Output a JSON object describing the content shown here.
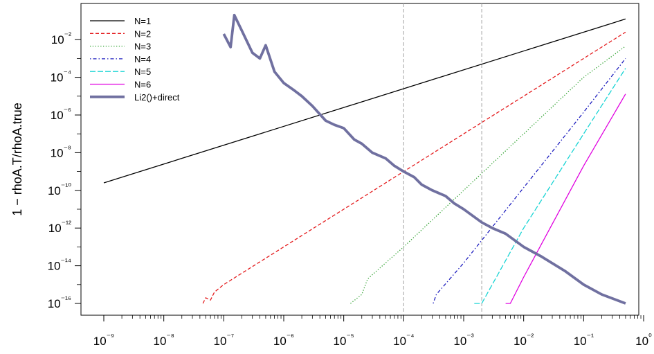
{
  "chart_data": {
    "type": "line",
    "title": "",
    "xlabel": "",
    "ylabel": "1 − rhoA.T/rhoA.true",
    "x_scale": "log10",
    "y_scale": "log10",
    "xlim": [
      1e-09,
      1
    ],
    "ylim": [
      1e-16,
      0.1
    ],
    "x_ticks": [
      "10⁻⁹",
      "10⁻⁸",
      "10⁻⁷",
      "10⁻⁶",
      "10⁻⁵",
      "10⁻⁴",
      "10⁻³",
      "10⁻²",
      "10⁻¹",
      "10⁰"
    ],
    "y_ticks": [
      "10⁻¹⁶",
      "10⁻¹⁴",
      "10⁻¹²",
      "10⁻¹⁰",
      "10⁻⁸",
      "10⁻⁶",
      "10⁻⁴",
      "10⁻²"
    ],
    "vlines": [
      0.0001,
      0.002
    ],
    "legend_position": "top-left",
    "grid": false,
    "series": [
      {
        "name": "N=1",
        "color": "#000000",
        "dash": "solid",
        "width": 1.3,
        "points": [
          [
            1e-09,
            2.5e-10
          ],
          [
            0.5,
            0.125
          ]
        ]
      },
      {
        "name": "N=2",
        "color": "#e41a1c",
        "dash": "dashed",
        "width": 1.3,
        "points": [
          [
            4.5e-08,
            1e-16
          ],
          [
            5e-08,
            2e-16
          ],
          [
            6e-08,
            1.5e-16
          ],
          [
            7e-08,
            4e-16
          ],
          [
            1e-07,
            1e-15
          ],
          [
            1e-06,
            1e-13
          ],
          [
            1e-05,
            1e-11
          ],
          [
            0.0001,
            1e-09
          ],
          [
            0.001,
            1e-07
          ],
          [
            0.01,
            1e-05
          ],
          [
            0.1,
            0.001
          ],
          [
            0.5,
            0.025
          ]
        ]
      },
      {
        "name": "N=3",
        "color": "#2ca02c",
        "dash": "dotted",
        "width": 1.3,
        "points": [
          [
            1.3e-05,
            1e-16
          ],
          [
            2e-05,
            3e-16
          ],
          [
            2.5e-05,
            2e-15
          ],
          [
            0.0001,
            1e-13
          ],
          [
            0.001,
            1e-10
          ],
          [
            0.01,
            1e-07
          ],
          [
            0.1,
            0.0001
          ],
          [
            0.5,
            0.0045
          ]
        ]
      },
      {
        "name": "N=4",
        "color": "#1f1fbf",
        "dash": "dotdash",
        "width": 1.3,
        "points": [
          [
            0.00031,
            1e-16
          ],
          [
            0.00035,
            3e-16
          ],
          [
            0.001,
            1.4e-14
          ],
          [
            0.01,
            1.4e-10
          ],
          [
            0.1,
            1.4e-06
          ],
          [
            0.5,
            0.001
          ]
        ]
      },
      {
        "name": "N=5",
        "color": "#17d4d4",
        "dash": "longdash",
        "width": 1.3,
        "points": [
          [
            0.0015,
            1e-16
          ],
          [
            0.002,
            1e-16
          ],
          [
            0.01,
            1e-12
          ],
          [
            0.1,
            1e-07
          ],
          [
            0.5,
            0.0003
          ]
        ]
      },
      {
        "name": "N=6",
        "color": "#e000e0",
        "dash": "solid",
        "width": 1.3,
        "points": [
          [
            0.005,
            1e-16
          ],
          [
            0.006,
            1e-16
          ],
          [
            0.01,
            2.5e-15
          ],
          [
            0.1,
            2e-09
          ],
          [
            0.5,
            1.3e-05
          ]
        ]
      },
      {
        "name": "Li2()+direct",
        "color": "#7070a0",
        "dash": "solid",
        "width": 3.8,
        "points": [
          [
            1e-07,
            0.02
          ],
          [
            1.3e-07,
            0.004
          ],
          [
            1.5e-07,
            0.2
          ],
          [
            2e-07,
            0.03
          ],
          [
            3e-07,
            0.002
          ],
          [
            4e-07,
            0.001
          ],
          [
            5e-07,
            0.005
          ],
          [
            7e-07,
            0.0002
          ],
          [
            1e-06,
            5e-05
          ],
          [
            1.5e-06,
            2e-05
          ],
          [
            2e-06,
            1e-05
          ],
          [
            3e-06,
            3e-06
          ],
          [
            5e-06,
            5e-07
          ],
          [
            7e-06,
            3e-07
          ],
          [
            1e-05,
            2e-07
          ],
          [
            1.5e-05,
            5e-08
          ],
          [
            2e-05,
            3e-08
          ],
          [
            3e-05,
            1e-08
          ],
          [
            5e-05,
            5e-09
          ],
          [
            7e-05,
            2e-09
          ],
          [
            0.0001,
            1e-09
          ],
          [
            0.00015,
            5e-10
          ],
          [
            0.0002,
            2e-10
          ],
          [
            0.0003,
            1e-10
          ],
          [
            0.0005,
            5e-11
          ],
          [
            0.0007,
            2e-11
          ],
          [
            0.001,
            1e-11
          ],
          [
            0.002,
            2e-12
          ],
          [
            0.003,
            1e-12
          ],
          [
            0.005,
            5e-13
          ],
          [
            0.01,
            1e-13
          ],
          [
            0.02,
            3e-14
          ],
          [
            0.05,
            5e-15
          ],
          [
            0.1,
            1e-15
          ],
          [
            0.2,
            3e-16
          ],
          [
            0.5,
            1e-16
          ]
        ]
      }
    ]
  }
}
